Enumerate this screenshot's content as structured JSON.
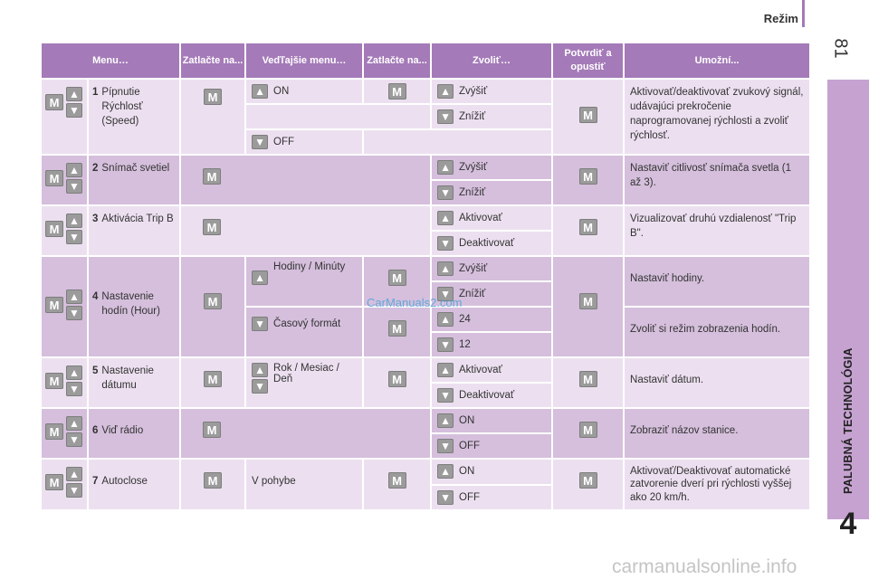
{
  "page": {
    "title": "Režim",
    "number": "81",
    "side_label": "PALUBNÁ TECHNOLÓGIA",
    "chapter": "4"
  },
  "watermarks": {
    "middle": "CarManuals2.com",
    "bottom": "carmanualsonline.info"
  },
  "keys": {
    "up": "▲",
    "down": "▼",
    "menu": "M"
  },
  "headers": [
    "Menu…",
    "Zatlačte na...",
    "Veďľajšie menu…",
    "Zatlačte na...",
    "Zvoliť…",
    "Potvrdiť a opustiť",
    "Umožní..."
  ],
  "rows": {
    "r1": {
      "num": "1",
      "label": "Pípnutie Rýchlosť (Speed)",
      "sub_on": "ON",
      "sub_off": "OFF",
      "c1": "Zvýšiť",
      "c2": "Znížiť",
      "desc": "Aktivovať/deaktivovať zvukový signál, udávajúci prekročenie naprogramovanej rýchlosti a zvoliť rýchlosť."
    },
    "r2": {
      "num": "2",
      "label": "Snímač svetiel",
      "c1": "Zvýšiť",
      "c2": "Znížiť",
      "desc": "Nastaviť citlivosť snímača svetla (1 až 3)."
    },
    "r3": {
      "num": "3",
      "label": "Aktivácia Trip B",
      "c1": "Aktivovať",
      "c2": "Deaktivovať",
      "desc": "Vizualizovať druhú vzdialenosť \"Trip B\"."
    },
    "r4": {
      "num": "4",
      "label": "Nastavenie hodín (Hour)",
      "sub1": "Hodiny / Minúty",
      "sub2": "Časový formát",
      "c1": "Zvýšiť",
      "c2": "Znížiť",
      "c3": "24",
      "c4": "12",
      "desc1": "Nastaviť hodiny.",
      "desc2": "Zvoliť si režim zobrazenia hodín."
    },
    "r5": {
      "num": "5",
      "label": "Nastavenie dátumu",
      "sub": "Rok / Mesiac / Deň",
      "c1": "Aktivovať",
      "c2": "Deaktivovať",
      "desc": "Nastaviť dátum."
    },
    "r6": {
      "num": "6",
      "label": "Viď rádio",
      "c1": "ON",
      "c2": "OFF",
      "desc": "Zobraziť názov stanice."
    },
    "r7": {
      "num": "7",
      "label": "Autoclose",
      "sub": "V pohybe",
      "c1": "ON",
      "c2": "OFF",
      "desc": "Aktivovať/Deaktivovať automatické zatvorenie dverí pri rýchlosti vyššej ako 20 km/h."
    }
  }
}
